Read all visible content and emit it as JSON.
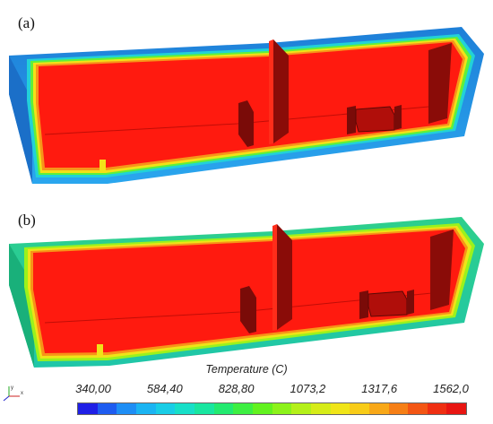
{
  "panels": [
    {
      "label": "(a)"
    },
    {
      "label": "(b)"
    }
  ],
  "legend": {
    "title": "Temperature (C)",
    "ticks": [
      "340,00",
      "584,40",
      "828,80",
      "1073,2",
      "1317,6",
      "1562,0"
    ],
    "colors": [
      "#1f1fe6",
      "#1e5cf0",
      "#1e8ef5",
      "#1bb4f2",
      "#19cde6",
      "#17dfc8",
      "#18e6a0",
      "#22ea70",
      "#3def42",
      "#62f21f",
      "#8cf21a",
      "#b4f019",
      "#d6ec18",
      "#f0e518",
      "#f8cc18",
      "#f8a818",
      "#f67f16",
      "#f35614",
      "#ef2f12",
      "#e81512"
    ]
  },
  "colors": {
    "hot": "#ff1a0f",
    "inner_dark": "#7a0b08",
    "wall_a_outer": "#1f8fe0",
    "wall_b_outer": "#21c48a"
  }
}
